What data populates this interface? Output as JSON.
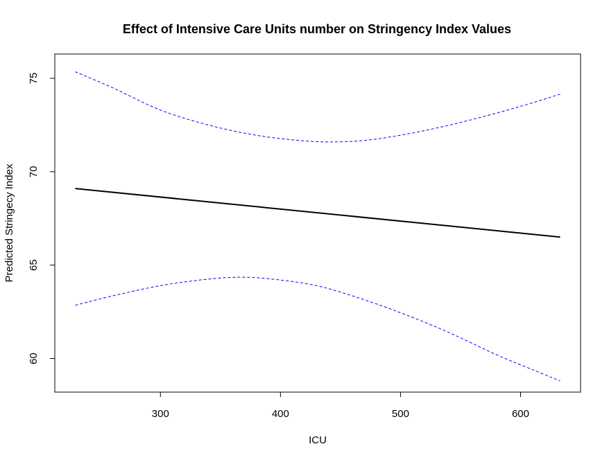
{
  "chart_data": {
    "type": "line",
    "title": "Effect of Intensive Care Units number on Stringency Index Values",
    "xlabel": "ICU",
    "ylabel": "Predicted Stringecy Index",
    "xlim": [
      212,
      650
    ],
    "ylim": [
      58.2,
      76.3
    ],
    "x_ticks": [
      300,
      400,
      500,
      600
    ],
    "y_ticks": [
      60,
      65,
      70,
      75
    ],
    "grid": false,
    "series": [
      {
        "style": "solid",
        "color": "#000000",
        "points": [
          [
            229,
            69.1
          ],
          [
            633,
            66.5
          ]
        ]
      },
      {
        "style": "dashed",
        "color": "#0000ff",
        "points": [
          [
            229,
            75.35
          ],
          [
            260,
            74.5
          ],
          [
            300,
            73.3
          ],
          [
            340,
            72.5
          ],
          [
            380,
            71.95
          ],
          [
            420,
            71.65
          ],
          [
            450,
            71.6
          ],
          [
            480,
            71.75
          ],
          [
            520,
            72.2
          ],
          [
            560,
            72.8
          ],
          [
            600,
            73.5
          ],
          [
            633,
            74.15
          ]
        ]
      },
      {
        "style": "dashed",
        "color": "#0000ff",
        "points": [
          [
            229,
            62.85
          ],
          [
            260,
            63.35
          ],
          [
            300,
            63.9
          ],
          [
            340,
            64.25
          ],
          [
            370,
            64.35
          ],
          [
            400,
            64.2
          ],
          [
            430,
            63.9
          ],
          [
            460,
            63.35
          ],
          [
            500,
            62.45
          ],
          [
            540,
            61.4
          ],
          [
            580,
            60.2
          ],
          [
            610,
            59.4
          ],
          [
            633,
            58.8
          ]
        ]
      }
    ]
  }
}
